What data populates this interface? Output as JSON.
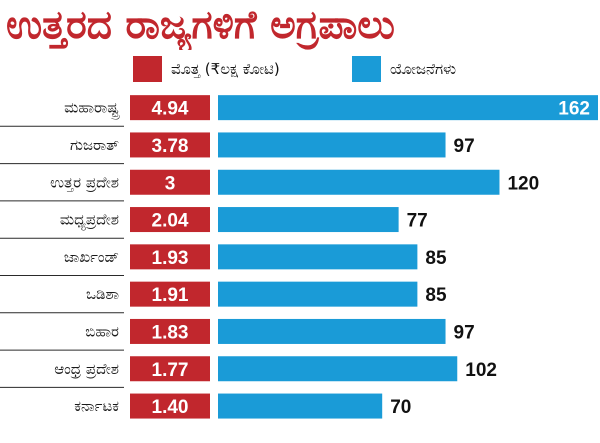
{
  "chart_data": {
    "type": "bar",
    "title": "ಉತ್ತರದ ರಾಜ್ಯಗಳಿಗೆ ಅಗ್ರಪಾಲು",
    "categories": [
      "ಮಹಾರಾಷ್ಟ್ರ",
      "ಗುಜರಾತ್",
      "ಉತ್ತರ ಪ್ರದೇಶ",
      "ಮಧ್ಯಪ್ರದೇಶ",
      "ಜಾರ್ಖಂಡ್",
      "ಒಡಿಶಾ",
      "ಬಿಹಾರ",
      "ಆಂಧ್ರ ಪ್ರದೇಶ",
      "ಕರ್ನಾಟಕ"
    ],
    "series": [
      {
        "name": "ಮೊತ್ತ (₹ಲಕ್ಷ ಕೋಟಿ)",
        "color": "#c1272d",
        "values": [
          4.94,
          3.78,
          3,
          2.04,
          1.93,
          1.91,
          1.83,
          1.77,
          1.4
        ],
        "labels": [
          "4.94",
          "3.78",
          "3",
          "2.04",
          "1.93",
          "1.91",
          "1.83",
          "1.77",
          "1.40"
        ]
      },
      {
        "name": "ಯೋಜನೆಗಳು",
        "color": "#1a9bd7",
        "values": [
          162,
          97,
          120,
          77,
          85,
          85,
          97,
          102,
          70
        ],
        "labels": [
          "162",
          "97",
          "120",
          "77",
          "85",
          "85",
          "97",
          "102",
          "70"
        ]
      }
    ],
    "legend": "top",
    "grid": false
  }
}
